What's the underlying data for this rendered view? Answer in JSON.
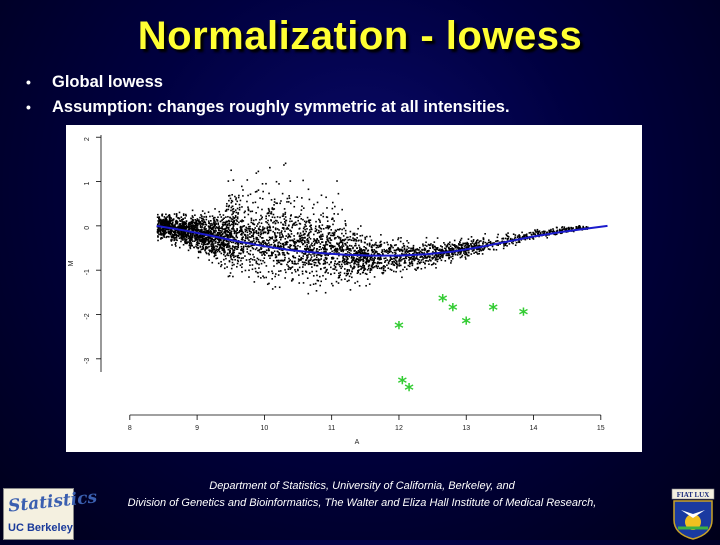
{
  "slide": {
    "title": "Normalization - lowess",
    "bullets": [
      "Global lowess",
      "Assumption: changes roughly symmetric at all intensities."
    ],
    "footer_line1": "Department of Statistics, University of California, Berkeley, and",
    "footer_line2": "Division of Genetics and Bioinformatics, The Walter and Eliza Hall Institute of Medical Research,",
    "logo_left_text": "Statistics",
    "logo_left_sub": "UC Berkeley",
    "logo_right_text": "FIAT LUX",
    "colors": {
      "title": "#ffff33",
      "background": "#000040",
      "lowess_line": "#1a1acc",
      "outlier_stars": "#33cc33"
    }
  },
  "chart_data": {
    "type": "scatter",
    "title": "",
    "xlabel": "A",
    "ylabel": "M",
    "xlim": [
      7.75,
      15.3
    ],
    "ylim": [
      -4.2,
      2.05
    ],
    "x_ticks": [
      8,
      9,
      10,
      11,
      12,
      13,
      14,
      15
    ],
    "y_ticks": [
      2,
      1,
      0,
      -1,
      -2,
      -3
    ],
    "cloud_description_points": "dense cloud of ~5000 black points",
    "lowess_curve": {
      "name": "global lowess fit",
      "x": [
        8.4,
        8.8,
        9.2,
        9.6,
        10.0,
        10.4,
        10.8,
        11.2,
        11.6,
        12.0,
        12.4,
        12.8,
        13.2,
        13.6,
        14.0,
        14.4,
        14.8,
        15.1
      ],
      "y": [
        0.0,
        -0.1,
        -0.22,
        -0.35,
        -0.46,
        -0.55,
        -0.61,
        -0.65,
        -0.67,
        -0.67,
        -0.64,
        -0.58,
        -0.48,
        -0.36,
        -0.24,
        -0.14,
        -0.06,
        0.0
      ]
    },
    "cloud_sample": {
      "x": [
        8.5,
        8.7,
        8.9,
        9.1,
        9.3,
        9.5,
        9.7,
        9.9,
        10.1,
        10.3,
        10.5,
        10.7,
        10.9,
        11.1,
        11.3,
        11.5,
        11.7,
        11.9,
        12.1,
        12.3,
        12.5,
        12.7,
        12.9,
        13.1,
        13.3,
        13.5,
        13.7,
        13.9,
        14.1,
        14.3,
        14.5,
        14.7
      ],
      "y_center": [
        0.0,
        -0.06,
        -0.12,
        -0.18,
        -0.25,
        -0.32,
        -0.38,
        -0.43,
        -0.48,
        -0.52,
        -0.56,
        -0.59,
        -0.62,
        -0.64,
        -0.66,
        -0.67,
        -0.67,
        -0.67,
        -0.66,
        -0.64,
        -0.61,
        -0.57,
        -0.52,
        -0.46,
        -0.4,
        -0.34,
        -0.27,
        -0.21,
        -0.16,
        -0.11,
        -0.07,
        -0.03
      ],
      "y_spread": [
        0.35,
        0.45,
        0.55,
        0.7,
        0.8,
        0.9,
        1.0,
        1.05,
        1.1,
        1.15,
        1.1,
        1.05,
        1.0,
        0.95,
        0.85,
        0.75,
        0.65,
        0.55,
        0.5,
        0.45,
        0.4,
        0.35,
        0.3,
        0.28,
        0.25,
        0.2,
        0.18,
        0.16,
        0.14,
        0.12,
        0.1,
        0.08
      ]
    },
    "outliers": {
      "name": "green stars",
      "x": [
        12.65,
        12.8,
        13.4,
        13.85,
        12.0,
        13.0,
        12.05,
        12.15
      ],
      "y": [
        -1.7,
        -1.9,
        -1.9,
        -2.0,
        -2.3,
        -2.2,
        -3.55,
        -3.7
      ]
    }
  }
}
